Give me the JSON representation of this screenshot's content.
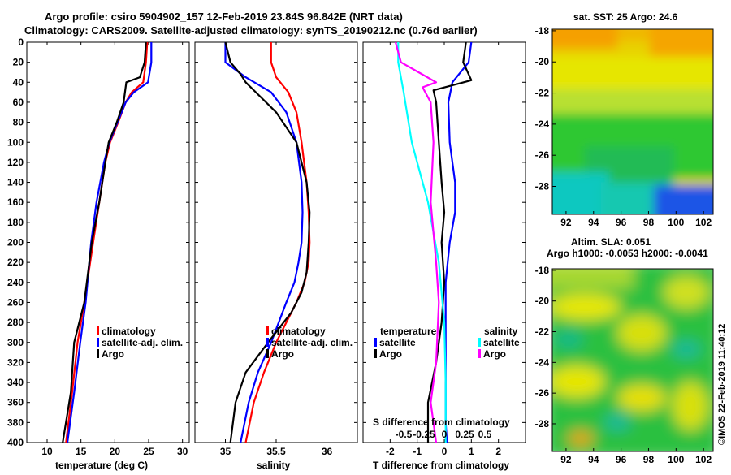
{
  "header": {
    "line1": "Argo profile: csiro 5904902_157 12-Feb-2019 23.84S 96.842E (NRT data)",
    "line2": "Climatology: CARS2009. Satellite-adjusted climatology: synTS_20190212.nc (0.76d earlier)"
  },
  "depth_axis": {
    "ticks": [
      0,
      20,
      40,
      60,
      80,
      100,
      120,
      140,
      160,
      180,
      200,
      220,
      240,
      260,
      280,
      300,
      320,
      340,
      360,
      380,
      400
    ],
    "ylim": [
      0,
      400
    ]
  },
  "colors": {
    "climatology": "#ff0000",
    "satellite": "#0000ff",
    "argo": "#000000",
    "satellite_salinity": "#00ffff",
    "argo_salinity": "#ff00ff"
  },
  "chart_data": [
    {
      "type": "line",
      "name": "temperature",
      "xlabel": "temperature (deg C)",
      "xlim": [
        7,
        31
      ],
      "xticks": [
        10,
        15,
        20,
        25,
        30
      ],
      "legend": [
        "climatology",
        "satellite-adj. clim.",
        "Argo"
      ],
      "series": [
        {
          "name": "climatology",
          "color": "#ff0000",
          "x": [
            24.8,
            24.6,
            24.2,
            22.5,
            21.6,
            20.5,
            19.3,
            18.6,
            17.7,
            16.8,
            15.5,
            14.5,
            13.7,
            12.8
          ],
          "y": [
            0,
            20,
            40,
            50,
            60,
            80,
            100,
            120,
            160,
            200,
            260,
            300,
            350,
            400
          ]
        },
        {
          "name": "satellite-adj. clim.",
          "color": "#0000ff",
          "x": [
            25.4,
            25.4,
            24.9,
            22.8,
            21.6,
            20.4,
            19.2,
            18.4,
            17.3,
            16.5,
            15.7,
            14.9,
            14.0,
            13.0
          ],
          "y": [
            0,
            20,
            40,
            50,
            60,
            80,
            100,
            120,
            160,
            200,
            260,
            300,
            350,
            400
          ]
        },
        {
          "name": "Argo",
          "color": "#000000",
          "x": [
            24.6,
            24.4,
            23.7,
            21.7,
            21.3,
            20.3,
            19.1,
            18.6,
            17.7,
            16.6,
            15.5,
            14.0,
            13.5,
            12.3
          ],
          "y": [
            0,
            20,
            35,
            40,
            60,
            80,
            100,
            120,
            160,
            200,
            260,
            300,
            350,
            400
          ]
        }
      ]
    },
    {
      "type": "line",
      "name": "salinity",
      "xlabel": "salinity",
      "xlim": [
        34.7,
        36.3
      ],
      "xticks": [
        35,
        35.5,
        36
      ],
      "legend": [
        "climatology",
        "satellite-adj. clim.",
        "Argo"
      ],
      "series": [
        {
          "name": "climatology",
          "color": "#ff0000",
          "x": [
            35.45,
            35.45,
            35.5,
            35.62,
            35.7,
            35.75,
            35.8,
            35.82,
            35.83,
            35.82,
            35.78,
            35.7,
            35.5,
            35.38,
            35.28,
            35.2
          ],
          "y": [
            0,
            20,
            35,
            50,
            70,
            100,
            140,
            170,
            200,
            220,
            240,
            260,
            300,
            330,
            360,
            400
          ]
        },
        {
          "name": "satellite-adj. clim.",
          "color": "#0000ff",
          "x": [
            35.0,
            35.0,
            35.2,
            35.45,
            35.6,
            35.7,
            35.75,
            35.76,
            35.75,
            35.72,
            35.68,
            35.6,
            35.45,
            35.32,
            35.23,
            35.15
          ],
          "y": [
            0,
            20,
            35,
            50,
            70,
            100,
            140,
            170,
            200,
            220,
            240,
            260,
            300,
            330,
            360,
            400
          ]
        },
        {
          "name": "Argo",
          "color": "#000000",
          "x": [
            35.0,
            35.05,
            35.15,
            35.2,
            35.3,
            35.5,
            35.7,
            35.8,
            35.83,
            35.82,
            35.8,
            35.75,
            35.65,
            35.42,
            35.2,
            35.1,
            35.05
          ],
          "y": [
            0,
            20,
            32,
            40,
            50,
            70,
            100,
            140,
            170,
            200,
            230,
            250,
            270,
            300,
            330,
            360,
            400
          ]
        }
      ]
    },
    {
      "type": "line",
      "name": "differences",
      "xlabel": "T difference from climatology",
      "xlim": [
        -3,
        3
      ],
      "xticks": [
        -2,
        -1,
        0,
        1,
        2
      ],
      "top_label": "S difference from climatology",
      "top_ticks": [
        "-0.5",
        "-0.25",
        "0",
        "0.25",
        "0.5"
      ],
      "legend": {
        "temperature": [
          "satellite",
          "Argo"
        ],
        "salinity": [
          "satellite",
          "Argo"
        ],
        "temperature_title": "temperature",
        "salinity_title": "salinity"
      },
      "series": [
        {
          "name": "T satellite",
          "color": "#0000ff",
          "x": [
            1.0,
            0.9,
            0.3,
            0.15,
            0.2,
            0.4,
            0.4,
            0.2,
            0.05,
            0.05,
            0.05,
            0.05,
            0.05,
            0.1
          ],
          "y": [
            0,
            20,
            40,
            60,
            100,
            140,
            170,
            200,
            240,
            280,
            320,
            360,
            380,
            400
          ]
        },
        {
          "name": "T Argo",
          "color": "#000000",
          "x": [
            0.8,
            0.7,
            1.0,
            -0.4,
            -0.3,
            -0.2,
            -0.1,
            0.0,
            -0.1,
            0.0,
            -0.1,
            -0.3,
            -0.6,
            -0.6
          ],
          "y": [
            0,
            20,
            38,
            48,
            60,
            100,
            140,
            170,
            200,
            240,
            280,
            320,
            360,
            400
          ]
        },
        {
          "name": "S satellite",
          "color": "#00ffff",
          "x": [
            -1.7,
            -1.7,
            -1.5,
            -1.2,
            -0.6,
            -0.2,
            0.0,
            0.05,
            0.05
          ],
          "y": [
            0,
            20,
            50,
            100,
            160,
            220,
            280,
            340,
            400
          ]
        },
        {
          "name": "S Argo",
          "color": "#ff00ff",
          "x": [
            -1.8,
            -1.6,
            -0.3,
            -0.8,
            -0.5,
            -0.4,
            -0.5,
            -0.3,
            -0.2,
            -0.3,
            -0.5,
            -0.3
          ],
          "y": [
            0,
            20,
            40,
            45,
            60,
            100,
            160,
            220,
            260,
            320,
            360,
            400
          ]
        }
      ]
    },
    {
      "type": "heatmap",
      "name": "sst-map",
      "title": "sat. SST: 25 Argo: 24.6",
      "xticks": [
        92,
        94,
        96,
        98,
        100,
        102
      ],
      "yticks": [
        -18,
        -20,
        -22,
        -24,
        -26,
        -28
      ],
      "xlim": [
        91,
        102.7
      ],
      "ylim": [
        -29.8,
        -17.9
      ]
    },
    {
      "type": "heatmap",
      "name": "sla-map",
      "title": "Altim. SLA: 0.051",
      "subtitle": "Argo h1000: -0.0053 h2000: -0.0041",
      "xticks": [
        92,
        94,
        96,
        98,
        100,
        102
      ],
      "yticks": [
        -18,
        -20,
        -22,
        -24,
        -26,
        -28
      ],
      "xlim": [
        91,
        102.7
      ],
      "ylim": [
        -29.8,
        -17.9
      ]
    }
  ],
  "footer": {
    "stamp": "©IMOS 22-Feb-2019 11:40:12"
  }
}
